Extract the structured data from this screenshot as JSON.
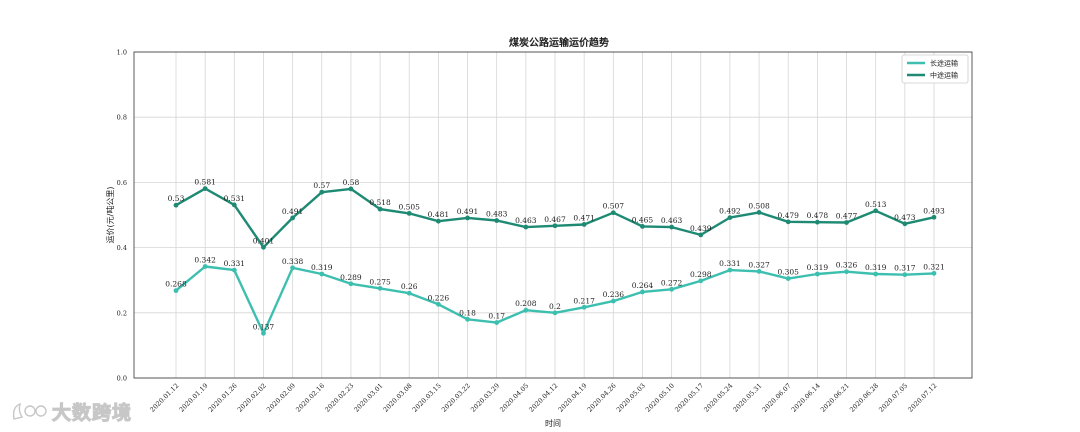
{
  "chart_data": {
    "type": "line",
    "title": "煤炭公路运输运价趋势",
    "xlabel": "时间",
    "ylabel": "运价(元/吨公里)",
    "ylim": [
      0.0,
      1.0
    ],
    "yticks": [
      "0.0",
      "0.2",
      "0.4",
      "0.6",
      "0.8",
      "1.0"
    ],
    "grid": true,
    "legend_position": "top-right",
    "categories": [
      "2020.01.12",
      "2020.01.19",
      "2020.01.26",
      "2020.02.02",
      "2020.02.09",
      "2020.02.16",
      "2020.02.23",
      "2020.03.01",
      "2020.03.08",
      "2020.03.15",
      "2020.03.22",
      "2020.03.29",
      "2020.04.05",
      "2020.04.12",
      "2020.04.19",
      "2020.04.26",
      "2020.05.03",
      "2020.05.10",
      "2020.05.17",
      "2020.05.24",
      "2020.05.31",
      "2020.06.07",
      "2020.06.14",
      "2020.06.21",
      "2020.06.28",
      "2020.07.05",
      "2020.07.12"
    ],
    "series": [
      {
        "name": "长途运输",
        "color": "#3dbfb0",
        "values": [
          0.268,
          0.342,
          0.331,
          0.137,
          0.338,
          0.319,
          0.289,
          0.275,
          0.26,
          0.226,
          0.18,
          0.17,
          0.208,
          0.2,
          0.217,
          0.236,
          0.264,
          0.272,
          0.298,
          0.331,
          0.327,
          0.305,
          0.319,
          0.326,
          0.319,
          0.317,
          0.321
        ],
        "labels": [
          "0.268",
          "0.342",
          "0.331",
          "0.137",
          "0.338",
          "0.319",
          "0.289",
          "0.275",
          "0.26",
          "0.226",
          "0.18",
          "0.17",
          "0.208",
          "0.2",
          "0.217",
          "0.236",
          "0.264",
          "0.272",
          "0.298",
          "0.331",
          "0.327",
          "0.305",
          "0.319",
          "0.326",
          "0.319",
          "0.317",
          "0.321"
        ]
      },
      {
        "name": "中途运输",
        "color": "#1e8a73",
        "values": [
          0.53,
          0.581,
          0.531,
          0.401,
          0.491,
          0.57,
          0.58,
          0.518,
          0.505,
          0.481,
          0.491,
          0.483,
          0.463,
          0.467,
          0.471,
          0.507,
          0.465,
          0.463,
          0.439,
          0.492,
          0.508,
          0.479,
          0.478,
          0.477,
          0.513,
          0.473,
          0.493
        ],
        "labels": [
          "0.53",
          "0.581",
          "0.531",
          "0.401",
          "0.491",
          "0.57",
          "0.58",
          "0.518",
          "0.505",
          "0.481",
          "0.491",
          "0.483",
          "0.463",
          "0.467",
          "0.471",
          "0.507",
          "0.465",
          "0.463",
          "0.439",
          "0.492",
          "0.508",
          "0.479",
          "0.478",
          "0.477",
          "0.513",
          "0.473",
          "0.493"
        ]
      }
    ]
  },
  "watermark": {
    "text": "大数跨境",
    "icon": "logo-icon"
  }
}
